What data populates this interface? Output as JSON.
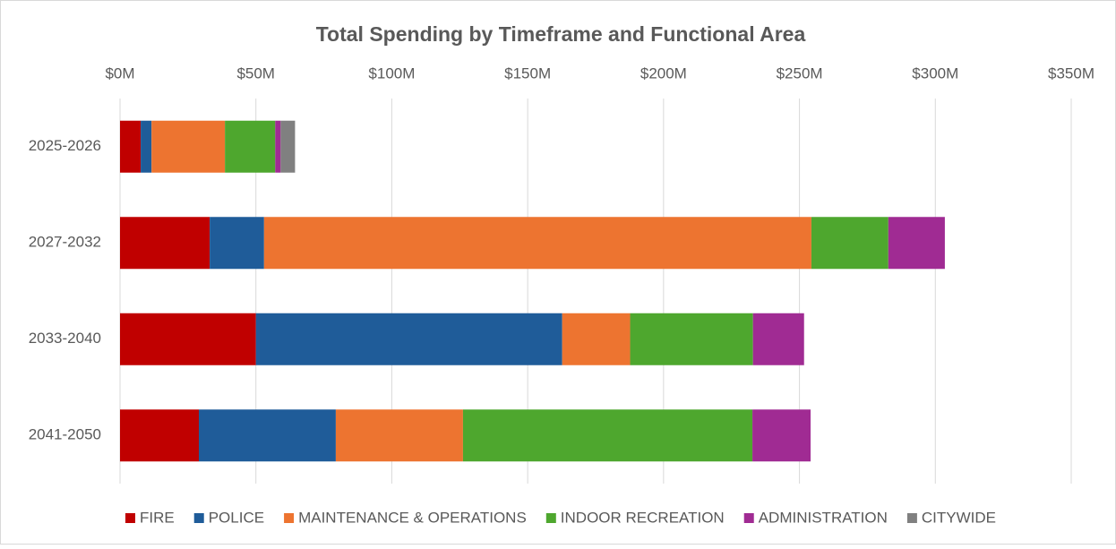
{
  "chart_data": {
    "type": "stacked-bar-horizontal",
    "title": "Total Spending by Timeframe and Functional Area",
    "categories": [
      "2025-2026",
      "2027-2032",
      "2033-2040",
      "2041-2050"
    ],
    "series": [
      {
        "name": "FIRE",
        "color": "#c00000",
        "values": [
          7.6,
          33,
          50,
          29
        ]
      },
      {
        "name": "POLICE",
        "color": "#1f5c99",
        "values": [
          4,
          20,
          112.7,
          50.4
        ]
      },
      {
        "name": "MAINTENANCE & OPERATIONS",
        "color": "#ed7430",
        "values": [
          27,
          201.4,
          25,
          46.8
        ]
      },
      {
        "name": "INDOOR RECREATION",
        "color": "#4ea72e",
        "values": [
          18.5,
          28.3,
          45.2,
          106.5
        ]
      },
      {
        "name": "ADMINISTRATION",
        "color": "#a02b93",
        "values": [
          2,
          20.8,
          18.8,
          21.4
        ]
      },
      {
        "name": "CITYWIDE",
        "color": "#808080",
        "values": [
          5.3,
          0,
          0,
          0
        ]
      }
    ],
    "xlim": [
      0,
      350
    ],
    "xticks": [
      {
        "value": 0,
        "label": "$0M"
      },
      {
        "value": 50,
        "label": "$50M"
      },
      {
        "value": 100,
        "label": "$100M"
      },
      {
        "value": 150,
        "label": "$150M"
      },
      {
        "value": 200,
        "label": "$200M"
      },
      {
        "value": 250,
        "label": "$250M"
      },
      {
        "value": 300,
        "label": "$300M"
      },
      {
        "value": 350,
        "label": "$350M"
      }
    ],
    "grid": true,
    "legend": "bottom"
  }
}
